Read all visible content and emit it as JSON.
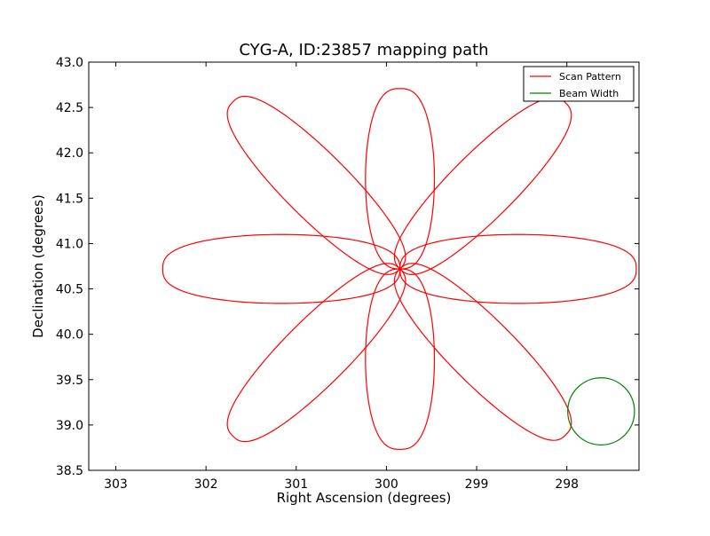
{
  "chart_data": {
    "type": "line",
    "title": "CYG-A, ID:23857 mapping path",
    "xlabel": "Right Ascension (degrees)",
    "ylabel": "Declination (degrees)",
    "xlim": [
      303.3,
      297.2
    ],
    "ylim": [
      38.5,
      43.0
    ],
    "x_ticks": [
      "303",
      "302",
      "301",
      "300",
      "299",
      "298"
    ],
    "y_ticks": [
      "38.5",
      "39.0",
      "39.5",
      "40.0",
      "40.5",
      "41.0",
      "41.5",
      "42.0",
      "42.5",
      "43.0"
    ],
    "grid": false,
    "legend_position": "top-right",
    "center": [
      299.85,
      40.72
    ],
    "series": [
      {
        "name": "Scan Pattern",
        "color": "#ff0000",
        "petals": [
          {
            "angle_deg": 0,
            "length_deg": 2.62,
            "half_width_deg": 0.38
          },
          {
            "angle_deg": 45,
            "length_deg": 2.6,
            "half_width_deg": 0.36
          },
          {
            "angle_deg": 90,
            "length_deg": 2.0,
            "half_width_deg": 0.38
          },
          {
            "angle_deg": 135,
            "length_deg": 2.62,
            "half_width_deg": 0.36
          },
          {
            "angle_deg": 180,
            "length_deg": 2.63,
            "half_width_deg": 0.38
          },
          {
            "angle_deg": 225,
            "length_deg": 2.62,
            "half_width_deg": 0.36
          },
          {
            "angle_deg": 270,
            "length_deg": 2.0,
            "half_width_deg": 0.38
          },
          {
            "angle_deg": 315,
            "length_deg": 2.6,
            "half_width_deg": 0.36
          }
        ]
      },
      {
        "name": "Beam Width",
        "color": "#008000",
        "circle": {
          "center_ra": 297.62,
          "center_dec": 39.15,
          "radius_deg": 0.37
        }
      }
    ]
  }
}
